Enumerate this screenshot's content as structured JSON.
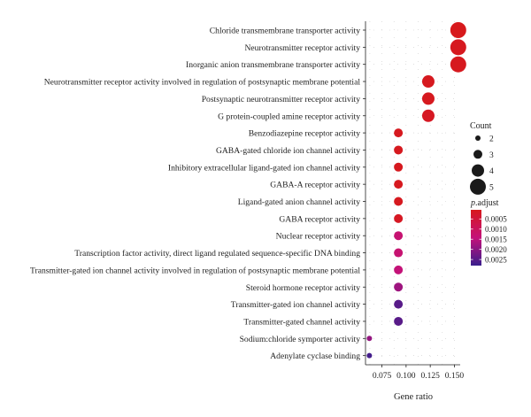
{
  "chart_data": {
    "type": "scatter",
    "xlabel": "Gene ratio",
    "xlim": [
      0.058,
      0.156
    ],
    "x_ticks": [
      "0.075",
      "0.100",
      "0.125",
      "0.150"
    ],
    "x_tick_values": [
      0.075,
      0.1,
      0.125,
      0.15
    ],
    "grid": true,
    "terms": [
      {
        "label": "Chloride transmembrane transporter activity",
        "gene_ratio": 0.154,
        "count": 5,
        "p_adjust": 5e-05
      },
      {
        "label": "Neurotransmitter receptor activity",
        "gene_ratio": 0.154,
        "count": 5,
        "p_adjust": 0.0001
      },
      {
        "label": "Inorganic anion transmembrane transporter activity",
        "gene_ratio": 0.154,
        "count": 5,
        "p_adjust": 0.0001
      },
      {
        "label": "Neurotransmitter receptor activity involved in regulation of postsynaptic membrane potential",
        "gene_ratio": 0.123,
        "count": 4,
        "p_adjust": 0.0001
      },
      {
        "label": "Postsynaptic neurotransmitter receptor activity",
        "gene_ratio": 0.123,
        "count": 4,
        "p_adjust": 0.0001
      },
      {
        "label": "G protein-coupled amine receptor activity",
        "gene_ratio": 0.123,
        "count": 4,
        "p_adjust": 0.00015
      },
      {
        "label": "Benzodiazepine receptor activity",
        "gene_ratio": 0.092,
        "count": 3,
        "p_adjust": 0.0001
      },
      {
        "label": "GABA-gated chloride ion channel activity",
        "gene_ratio": 0.092,
        "count": 3,
        "p_adjust": 0.0001
      },
      {
        "label": "Inhibitory extracellular ligand-gated ion channel activity",
        "gene_ratio": 0.092,
        "count": 3,
        "p_adjust": 0.0001
      },
      {
        "label": "GABA-A receptor activity",
        "gene_ratio": 0.092,
        "count": 3,
        "p_adjust": 0.0001
      },
      {
        "label": "Ligand-gated anion channel activity",
        "gene_ratio": 0.092,
        "count": 3,
        "p_adjust": 0.0001
      },
      {
        "label": "GABA receptor activity",
        "gene_ratio": 0.092,
        "count": 3,
        "p_adjust": 0.00015
      },
      {
        "label": "Nuclear receptor activity",
        "gene_ratio": 0.092,
        "count": 3,
        "p_adjust": 0.0013
      },
      {
        "label": "Transcription factor activity, direct ligand regulated sequence-specific DNA binding",
        "gene_ratio": 0.092,
        "count": 3,
        "p_adjust": 0.0013
      },
      {
        "label": "Transmitter-gated ion channel activity involved in regulation of postsynaptic membrane potential",
        "gene_ratio": 0.092,
        "count": 3,
        "p_adjust": 0.0014
      },
      {
        "label": "Steroid hormone receptor activity",
        "gene_ratio": 0.092,
        "count": 3,
        "p_adjust": 0.0018
      },
      {
        "label": "Transmitter-gated ion channel activity",
        "gene_ratio": 0.092,
        "count": 3,
        "p_adjust": 0.0025
      },
      {
        "label": "Transmitter-gated channel activity",
        "gene_ratio": 0.092,
        "count": 3,
        "p_adjust": 0.0025
      },
      {
        "label": "Sodium:chloride symporter activity",
        "gene_ratio": 0.062,
        "count": 2,
        "p_adjust": 0.0019
      },
      {
        "label": "Adenylate cyclase binding",
        "gene_ratio": 0.062,
        "count": 2,
        "p_adjust": 0.0027
      }
    ],
    "legend_count": {
      "title": "Count",
      "items": [
        "2",
        "3",
        "4",
        "5"
      ],
      "values": [
        2,
        3,
        4,
        5
      ]
    },
    "legend_padjust": {
      "title_italic": "p",
      "title_rest": ".adjust",
      "ticks": [
        "0.0005",
        "0.0010",
        "0.0015",
        "0.0020",
        "0.0025"
      ],
      "tick_values": [
        0.0005,
        0.001,
        0.0015,
        0.002,
        0.0025
      ],
      "range": [
        5e-05,
        0.0028
      ],
      "color_low": "#d7191c",
      "color_mid": "#c4127a",
      "color_high": "#3a1e8c"
    },
    "panel_color": "#ffffff",
    "grid_color": "#cccccc"
  }
}
